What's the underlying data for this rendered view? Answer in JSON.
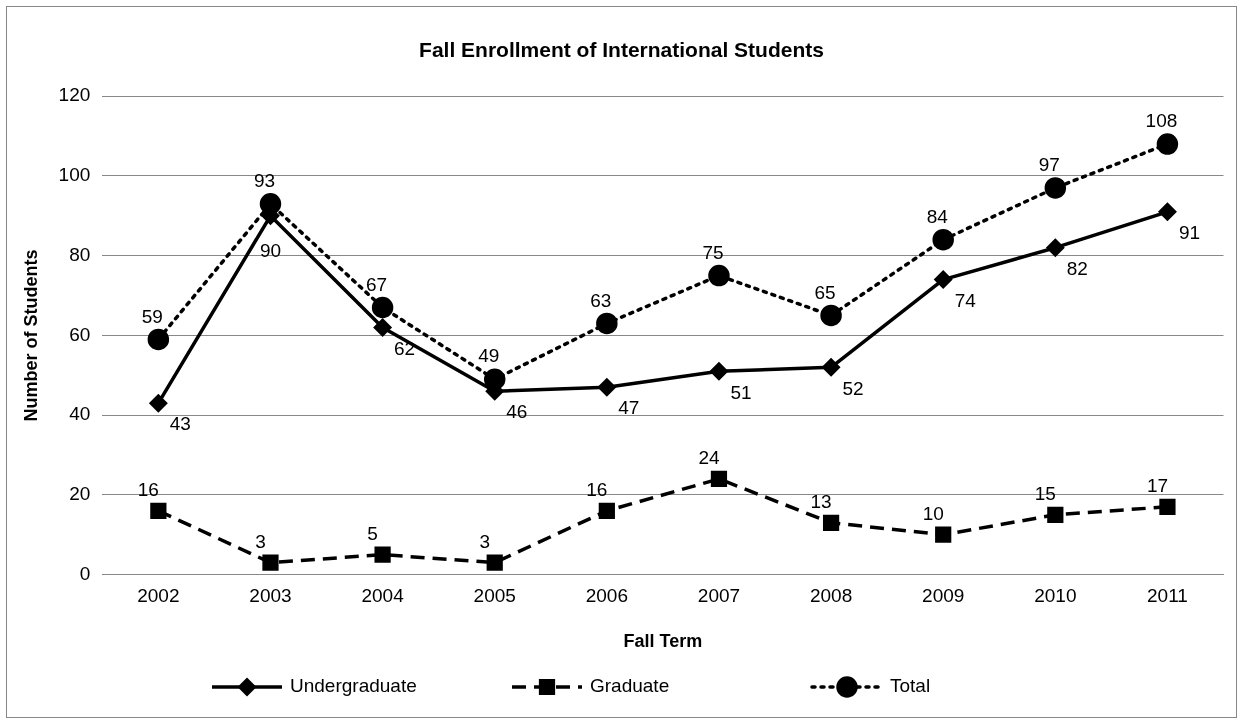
{
  "chart_data": {
    "type": "line",
    "title": "Fall Enrollment of International Students",
    "xlabel": "Fall Term",
    "ylabel": "Number of Students",
    "categories": [
      "2002",
      "2003",
      "2004",
      "2005",
      "2006",
      "2007",
      "2008",
      "2009",
      "2010",
      "2011"
    ],
    "series": [
      {
        "name": "Undergraduate",
        "color": "#000000",
        "marker": "diamond",
        "line_style": "solid",
        "values": [
          43,
          90,
          62,
          46,
          47,
          51,
          52,
          74,
          82,
          91
        ]
      },
      {
        "name": "Graduate",
        "color": "#000000",
        "marker": "square",
        "line_style": "dashed",
        "values": [
          16,
          3,
          5,
          3,
          16,
          24,
          13,
          10,
          15,
          17
        ]
      },
      {
        "name": "Total",
        "color": "#000000",
        "marker": "circle",
        "line_style": "dotted",
        "values": [
          59,
          93,
          67,
          49,
          63,
          75,
          65,
          84,
          97,
          108
        ]
      }
    ],
    "ylim": [
      0,
      120
    ],
    "yticks": [
      0,
      20,
      40,
      60,
      80,
      100,
      120
    ],
    "grid": "y",
    "legend": "bottom",
    "data_labels": true
  }
}
